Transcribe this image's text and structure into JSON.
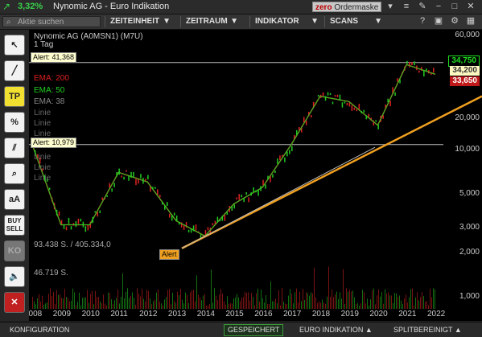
{
  "titlebar": {
    "change_pct": "3,32%",
    "title": "Nynomic AG - Euro Indikation",
    "zero_brand": "zero",
    "zero_label": "Ordermaske"
  },
  "toolbar": {
    "search_placeholder": "Aktie suchen",
    "zeiteinheit": "ZEITEINHEIT",
    "zeitraum": "ZEITRAUM",
    "indikator": "INDIKATOR",
    "scans": "SCANS"
  },
  "sidebar": {
    "tp": "TP",
    "percent": "%",
    "aa": "aA",
    "buy": "BUY",
    "sell": "SELL",
    "ko": "KO"
  },
  "chart": {
    "instrument": "Nynomic AG (A0MSN1) (M7U)",
    "interval": "1 Tag",
    "alert_top": "Alert: 41,368",
    "alert_mid": "Alert: 10,979",
    "alert_low": "Alert",
    "ema200": "EMA: 200",
    "ema50": "EMA: 50",
    "ema38": "EMA: 38",
    "linie": [
      "Linie",
      "Linie",
      "Linie",
      "Linie",
      "Linie",
      "Linie"
    ],
    "vol1": "93.438 S. / 405.334,0",
    "vol2": "46.719 S.",
    "yticks": [
      "60,000",
      "20,000",
      "10,000",
      "5,000",
      "3,000",
      "2,000",
      "1,000"
    ],
    "xticks": [
      "2008",
      "2009",
      "2010",
      "2011",
      "2012",
      "2013",
      "2014",
      "2015",
      "2016",
      "2017",
      "2018",
      "2019",
      "2020",
      "2021",
      "2022"
    ],
    "price_green": "34,750",
    "price_last": "34,200",
    "price_red": "33,650",
    "colors": {
      "ema_green": "#20d020",
      "ema_red": "#e02020",
      "trendline": "#f0a020",
      "up": "#22cc22",
      "down": "#dd2222"
    }
  },
  "chart_data": {
    "type": "line",
    "title": "Nynomic AG (A0MSN1) (M7U)",
    "scale": "log",
    "ylim": [
      0.9,
      65
    ],
    "x": [
      "2008",
      "2009",
      "2010",
      "2011",
      "2012",
      "2013",
      "2014",
      "2015",
      "2016",
      "2017",
      "2018",
      "2019",
      "2020",
      "2021",
      "2022"
    ],
    "series": [
      {
        "name": "Nynomic AG",
        "values": [
          11,
          3,
          3,
          7,
          6,
          3.2,
          2.5,
          4.2,
          5.5,
          11,
          24,
          22,
          15,
          40,
          34.2
        ]
      }
    ],
    "annotations": [
      "Alert: 41,368",
      "Alert: 10,979"
    ]
  },
  "statusbar": {
    "konfiguration": "KONFIGURATION",
    "saved": "GESPEICHERT",
    "euro": "EURO INDIKATION ▲",
    "split": "SPLITBEREINIGT ▲"
  }
}
